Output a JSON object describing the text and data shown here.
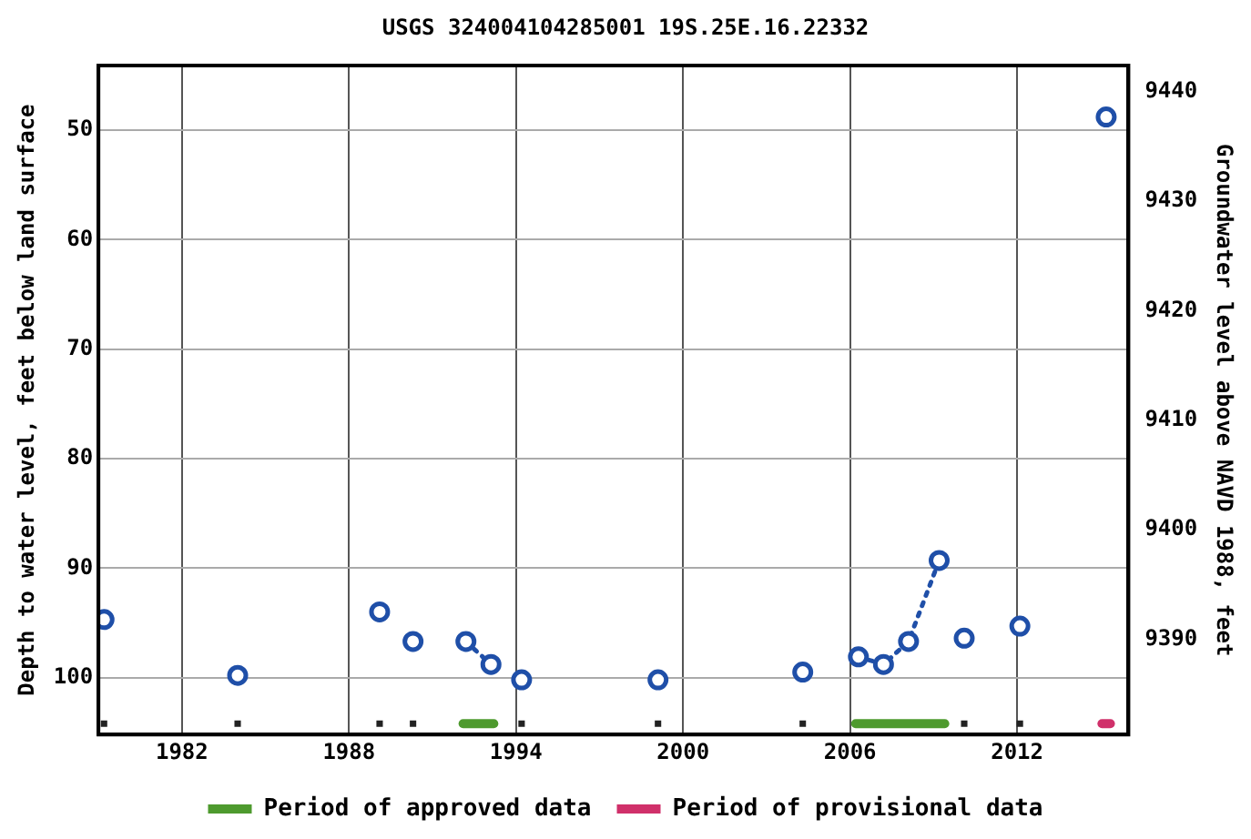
{
  "chart_data": {
    "type": "scatter",
    "title": "USGS 324004104285001 19S.25E.16.22332",
    "ylabel": "Depth to water level, feet below land surface",
    "y2label": "Groundwater level above NAVD 1988, feet",
    "xlim": [
      1979,
      2016
    ],
    "xticks": [
      1982,
      1988,
      1994,
      2000,
      2006,
      2012
    ],
    "ylim": [
      105.2,
      44.1
    ],
    "yticks": [
      50,
      60,
      70,
      80,
      90,
      100
    ],
    "y2lim": [
      9381.3,
      9442.4
    ],
    "y2ticks": [
      9390,
      9400,
      9410,
      9420,
      9430,
      9440
    ],
    "series": [
      {
        "type": "scatter",
        "color": "#1f4fa8",
        "x": [
          1979.2,
          1984.0,
          1989.1,
          1990.3,
          1994.2,
          1999.1,
          2004.3,
          2010.1,
          2012.1,
          2015.2
        ],
        "values": [
          94.7,
          99.8,
          94.0,
          96.7,
          100.2,
          100.2,
          99.5,
          96.4,
          95.3,
          48.8
        ]
      },
      {
        "type": "line",
        "color": "#1f4fa8",
        "line_style": "dotted",
        "x": [
          1992.2,
          1993.1
        ],
        "values": [
          96.7,
          98.8
        ]
      },
      {
        "type": "line",
        "color": "#1f4fa8",
        "line_style": "dotted",
        "x": [
          2006.3,
          2007.2,
          2008.1,
          2009.2
        ],
        "values": [
          98.1,
          98.8,
          96.7,
          89.3
        ]
      },
      {
        "type": "scatter",
        "color": "#222222",
        "marker": "square",
        "x": [
          1979.2,
          1984.0,
          1989.1,
          1990.3,
          1994.2,
          1999.1,
          2004.3,
          2010.1,
          2012.1
        ],
        "values": [
          104.2,
          104.2,
          104.2,
          104.2,
          104.2,
          104.2,
          104.2,
          104.2,
          104.2
        ]
      },
      {
        "type": "line",
        "name": "Period of approved data",
        "color": "#4e9a2e",
        "marker": "none",
        "x": [
          1992.1,
          1993.2
        ],
        "values": [
          104.2,
          104.2
        ]
      },
      {
        "type": "line",
        "color": "#4e9a2e",
        "marker": "none",
        "x": [
          2006.2,
          2009.4
        ],
        "values": [
          104.2,
          104.2
        ]
      },
      {
        "type": "line",
        "name": "Period of provisional data",
        "color": "#d0306a",
        "marker": "none",
        "x": [
          2015.05,
          2015.35
        ],
        "values": [
          104.2,
          104.2
        ]
      }
    ],
    "grid": true,
    "marker": "circle",
    "legend": "bottom"
  }
}
